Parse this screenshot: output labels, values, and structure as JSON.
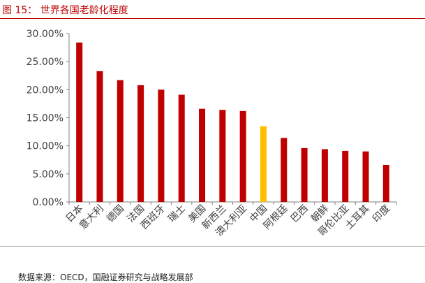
{
  "figure": {
    "label": "图",
    "number": "15：",
    "title": "世界各国老龄化程度"
  },
  "source": "数据来源：OECD，国融证券研究与战略发展部",
  "colors": {
    "bar": "#c00000",
    "highlight": "#ffc000",
    "title": "#c00000",
    "axis": "#808080",
    "text": "#404040"
  },
  "chart_data": {
    "type": "bar",
    "categories": [
      "日本",
      "意大利",
      "德国",
      "法国",
      "西班牙",
      "瑞士",
      "美国",
      "新西兰",
      "澳大利亚",
      "中国",
      "阿根廷",
      "巴西",
      "朝鲜",
      "哥伦比亚",
      "土耳其",
      "印度"
    ],
    "values": [
      28.4,
      23.3,
      21.7,
      20.8,
      20.0,
      19.1,
      16.6,
      16.4,
      16.2,
      13.5,
      11.4,
      9.6,
      9.4,
      9.1,
      9.0,
      6.6
    ],
    "highlight_category": "中国",
    "yticks": [
      "0.00%",
      "5.00%",
      "10.00%",
      "15.00%",
      "20.00%",
      "25.00%",
      "30.00%"
    ],
    "ylim": [
      0,
      30
    ],
    "grid": false,
    "legend": "none"
  }
}
